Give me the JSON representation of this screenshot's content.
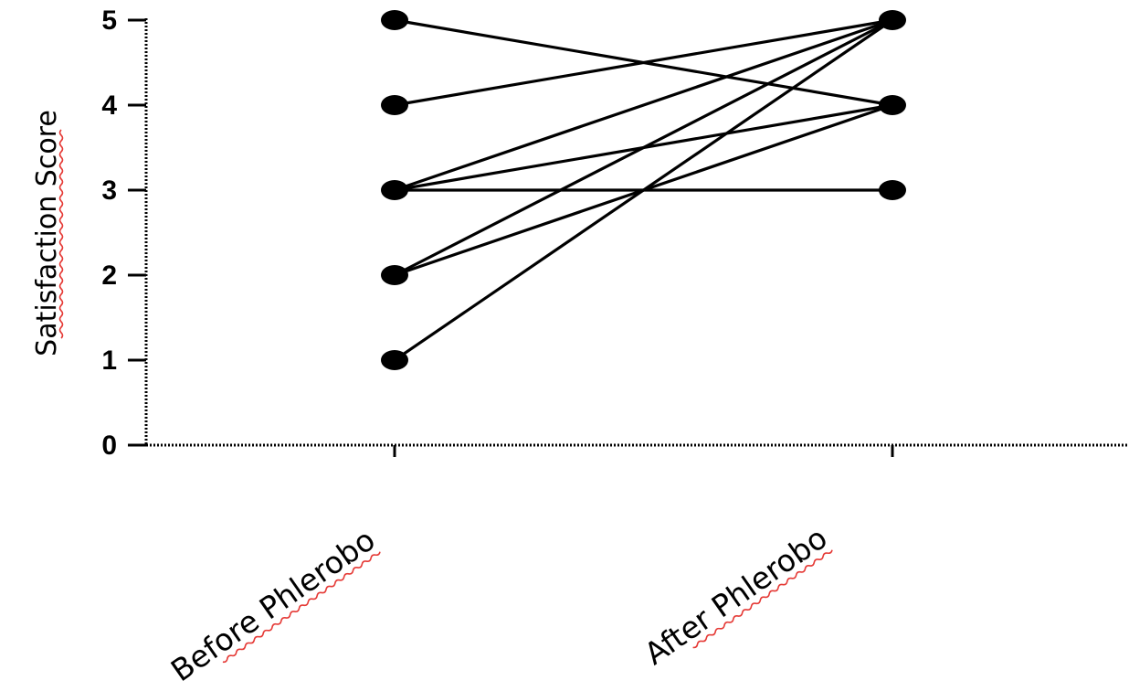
{
  "chart_data": {
    "type": "line",
    "title": "",
    "xlabel": "",
    "ylabel": "Satisfaction Score",
    "categories": [
      "Before Phlerobo",
      "After Phlerobo"
    ],
    "ylim": [
      0,
      5
    ],
    "yticks": [
      "0",
      "1",
      "2",
      "3",
      "4",
      "5"
    ],
    "grid": false,
    "legend": "none",
    "line_color": "#000000",
    "series": [
      {
        "values": [
          5,
          4
        ]
      },
      {
        "values": [
          4,
          5
        ]
      },
      {
        "values": [
          3,
          5
        ]
      },
      {
        "values": [
          3,
          4
        ]
      },
      {
        "values": [
          3,
          3
        ]
      },
      {
        "values": [
          2,
          5
        ]
      },
      {
        "values": [
          2,
          4
        ]
      },
      {
        "values": [
          1,
          5
        ]
      }
    ]
  }
}
